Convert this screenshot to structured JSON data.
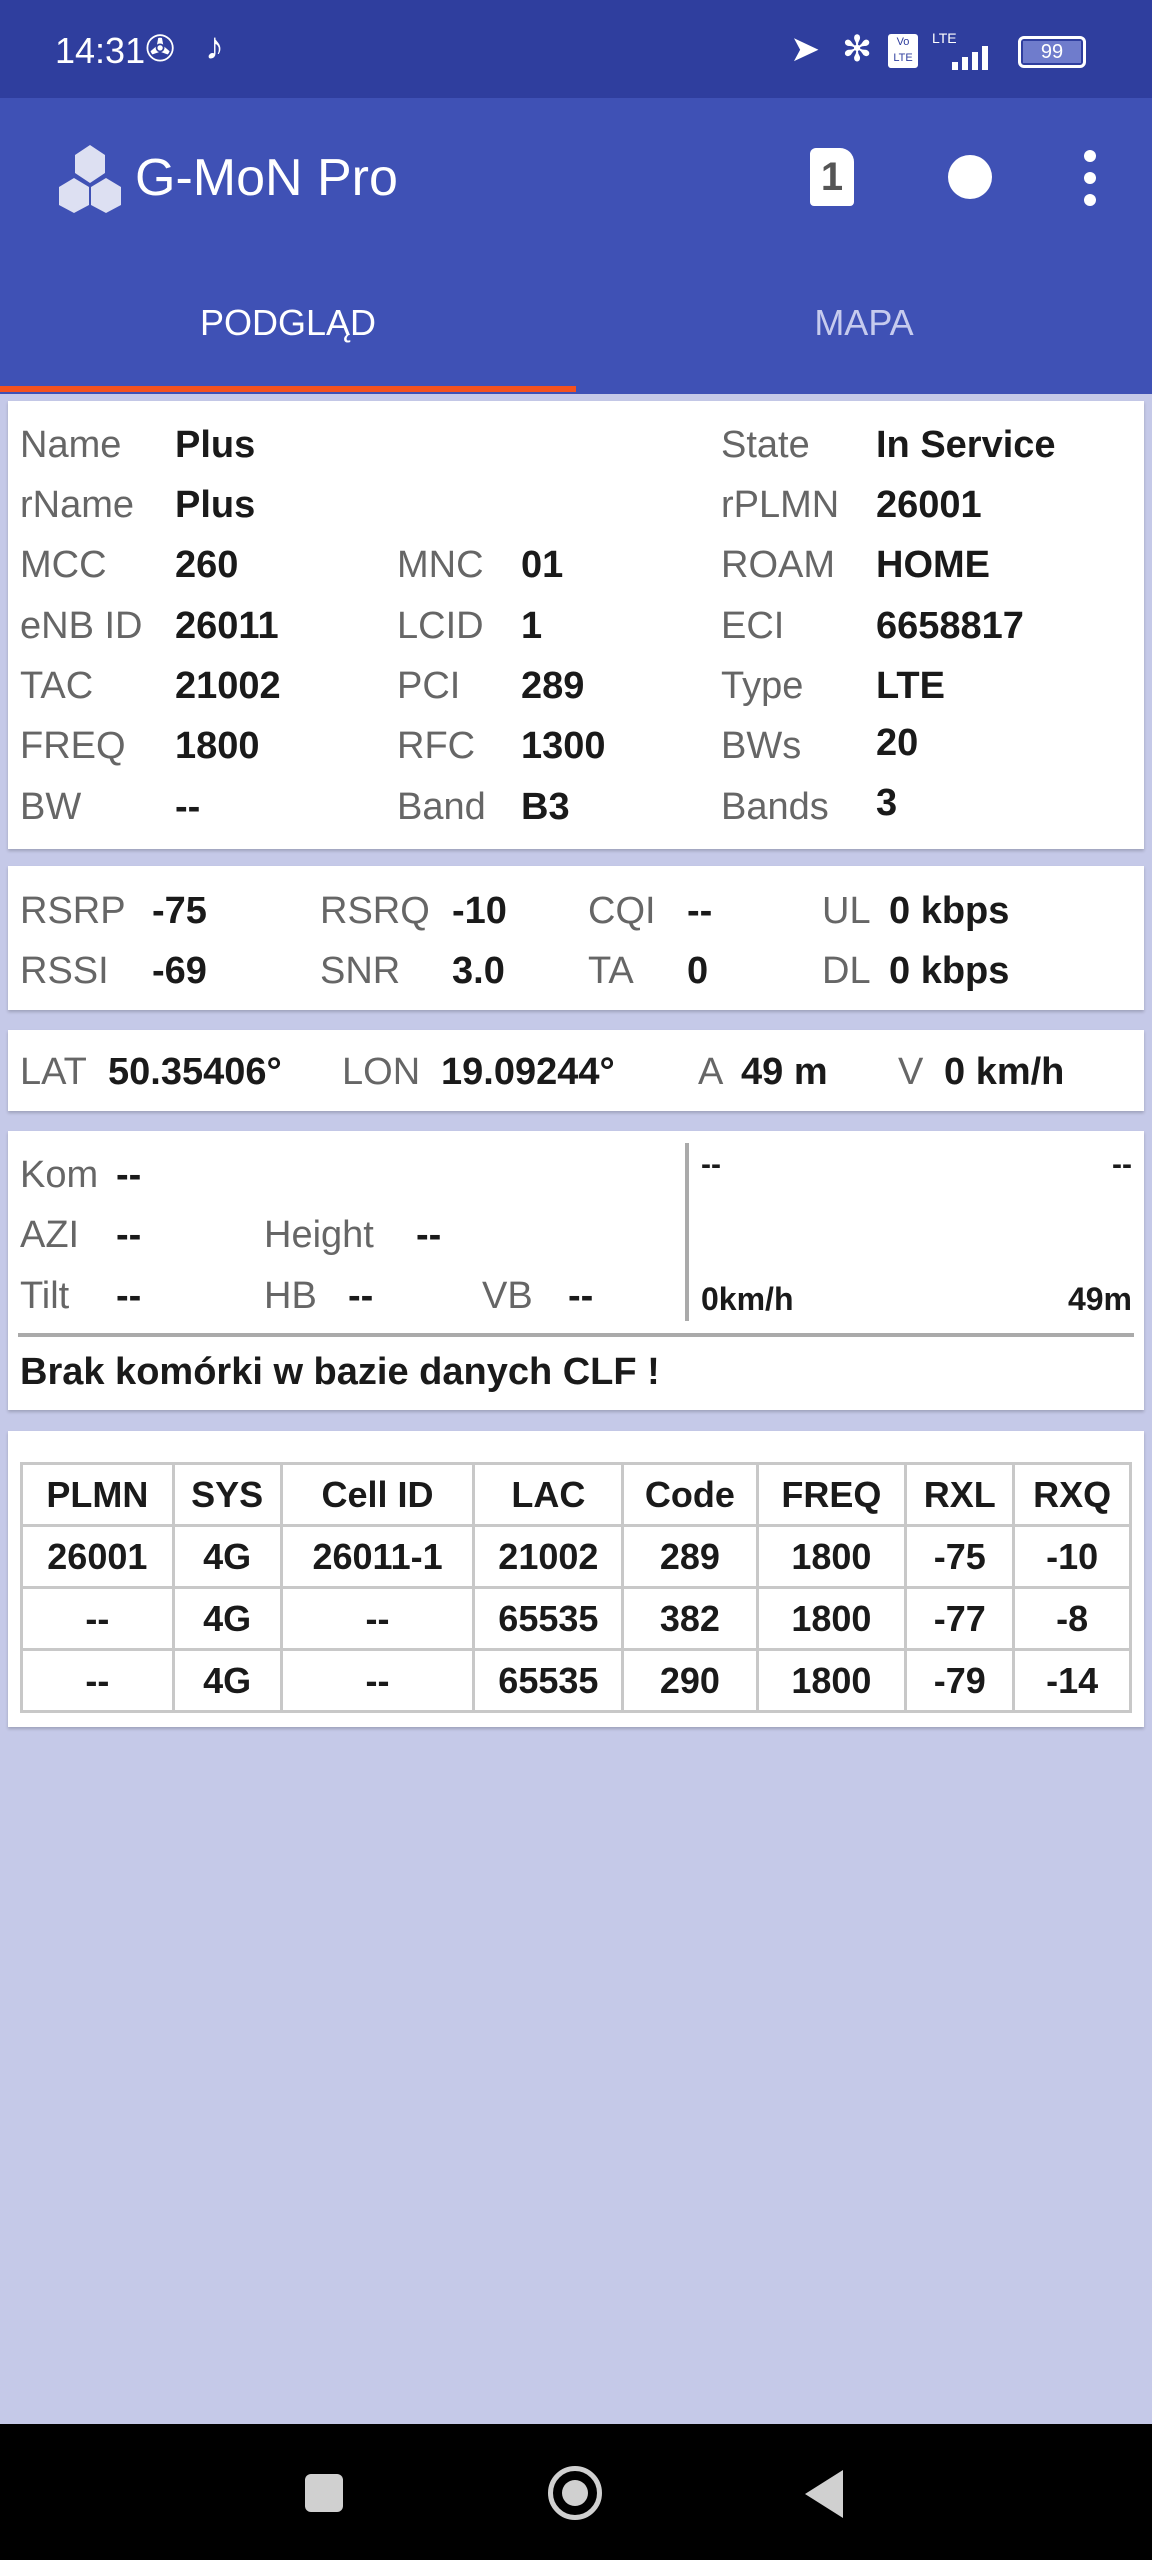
{
  "status_bar": {
    "time": "14:31",
    "battery": "99",
    "network": "LTE",
    "volte": "Vo LTE",
    "icons": [
      "fan-icon",
      "tiktok-icon",
      "location-icon",
      "bluetooth-icon",
      "volte-icon",
      "signal-icon",
      "battery-icon"
    ]
  },
  "app": {
    "title": "G-MoN Pro",
    "sim_badge": "1"
  },
  "tabs": [
    {
      "label": "PODGLĄD",
      "active": true
    },
    {
      "label": "MAPA",
      "active": false
    }
  ],
  "colors": {
    "primary": "#3f51b5",
    "status": "#2f3e9e",
    "accent": "#f4511e",
    "background": "#c5c9e8"
  },
  "cell": {
    "name_l": "Name",
    "name": "Plus",
    "state_l": "State",
    "state": "In Service",
    "rname_l": "rName",
    "rname": "Plus",
    "rplmn_l": "rPLMN",
    "rplmn": "26001",
    "mcc_l": "MCC",
    "mcc": "260",
    "mnc_l": "MNC",
    "mnc": "01",
    "roam_l": "ROAM",
    "roam": "HOME",
    "enb_l": "eNB ID",
    "enb": "26011",
    "lcid_l": "LCID",
    "lcid": "1",
    "eci_l": "ECI",
    "eci": "6658817",
    "tac_l": "TAC",
    "tac": "21002",
    "pci_l": "PCI",
    "pci": "289",
    "type_l": "Type",
    "type": "LTE",
    "freq_l": "FREQ",
    "freq": "1800",
    "rfc_l": "RFC",
    "rfc": "1300",
    "bws_l": "BWs",
    "bws": "20",
    "bw_l": "BW",
    "bw": "--",
    "band_l": "Band",
    "band": "B3",
    "bands_l": "Bands",
    "bands": "3"
  },
  "signal": {
    "rsrp_l": "RSRP",
    "rsrp": "-75",
    "rsrq_l": "RSRQ",
    "rsrq": "-10",
    "cqi_l": "CQI",
    "cqi": "--",
    "ul_l": "UL",
    "ul": "0 kbps",
    "rssi_l": "RSSI",
    "rssi": "-69",
    "snr_l": "SNR",
    "snr": "3.0",
    "ta_l": "TA",
    "ta": "0",
    "dl_l": "DL",
    "dl": "0 kbps"
  },
  "location": {
    "lat_l": "LAT",
    "lat": "50.35406°",
    "lon_l": "LON",
    "lon": "19.09244°",
    "a_l": "A",
    "a": "49 m",
    "v_l": "V",
    "v": "0 km/h"
  },
  "site": {
    "kom_l": "Kom",
    "kom": "--",
    "azi_l": "AZI",
    "azi": "--",
    "height_l": "Height",
    "height": "--",
    "tilt_l": "Tilt",
    "tilt": "--",
    "hb_l": "HB",
    "hb": "--",
    "vb_l": "VB",
    "vb": "--",
    "right_tl": "--",
    "right_tr": "--",
    "speed": "0km/h",
    "alt": "49m",
    "message": "Brak komórki w bazie danych CLF !"
  },
  "neighbors": {
    "headers": [
      "PLMN",
      "SYS",
      "Cell ID",
      "LAC",
      "Code",
      "FREQ",
      "RXL",
      "RXQ"
    ],
    "rows": [
      [
        "26001",
        "4G",
        "26011-1",
        "21002",
        "289",
        "1800",
        "-75",
        "-10"
      ],
      [
        "--",
        "4G",
        "--",
        "65535",
        "382",
        "1800",
        "-77",
        "-8"
      ],
      [
        "--",
        "4G",
        "--",
        "65535",
        "290",
        "1800",
        "-79",
        "-14"
      ]
    ]
  }
}
